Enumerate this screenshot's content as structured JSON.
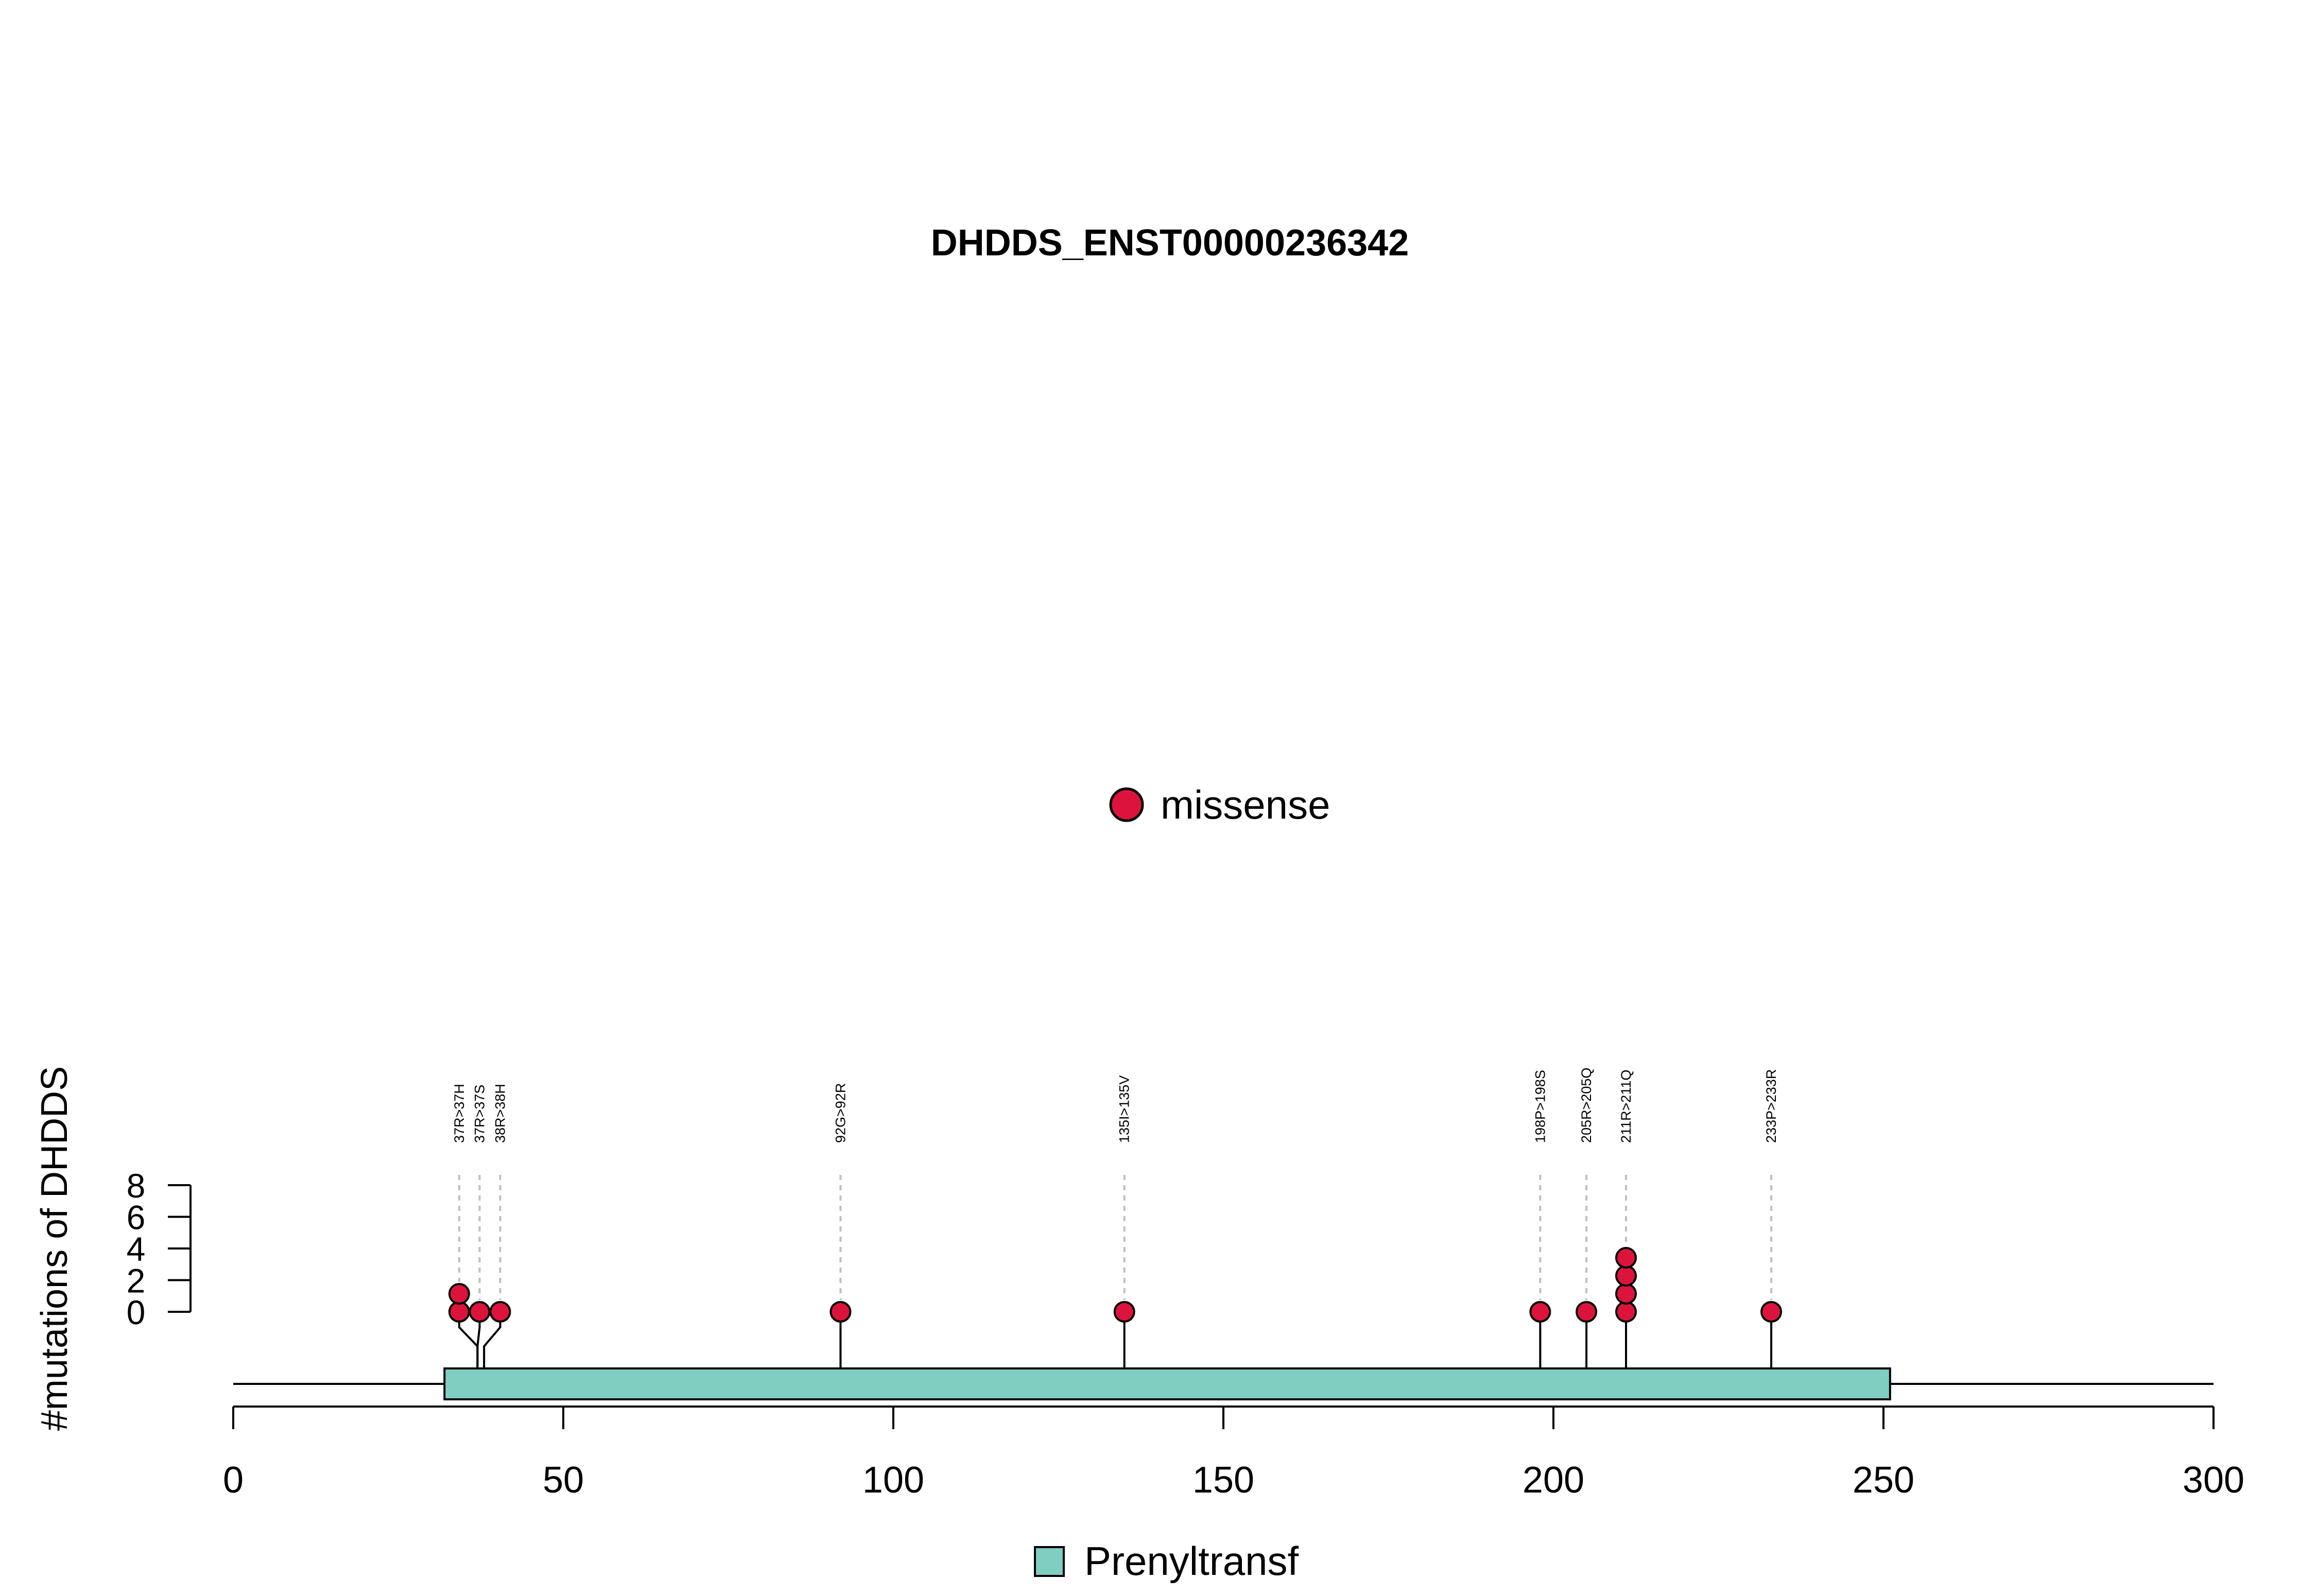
{
  "chart_data": {
    "type": "lollipop",
    "title": "DHDDS_ENST00000236342",
    "ylabel": "#mutations of DHDDS",
    "xlabel": "",
    "xlim": [
      0,
      300
    ],
    "x_ticks": [
      0,
      50,
      100,
      150,
      200,
      250,
      300
    ],
    "ylim": [
      0,
      8
    ],
    "y_ticks": [
      0,
      2,
      4,
      6,
      8
    ],
    "protein_length": 300,
    "domains": [
      {
        "name": "Prenyltransf",
        "start": 32,
        "end": 251,
        "color": "#80CDC1"
      }
    ],
    "mutation_type_legend": [
      {
        "label": "missense",
        "color": "#DC143C"
      }
    ],
    "mutations": [
      {
        "label": "37R>37H",
        "position": 37,
        "count": 2,
        "type": "missense"
      },
      {
        "label": "37R>37S",
        "position": 37,
        "count": 1,
        "type": "missense"
      },
      {
        "label": "38R>38H",
        "position": 38,
        "count": 1,
        "type": "missense"
      },
      {
        "label": "92G>92R",
        "position": 92,
        "count": 1,
        "type": "missense"
      },
      {
        "label": "135I>135V",
        "position": 135,
        "count": 1,
        "type": "missense"
      },
      {
        "label": "198P>198S",
        "position": 198,
        "count": 1,
        "type": "missense"
      },
      {
        "label": "205R>205Q",
        "position": 205,
        "count": 1,
        "type": "missense"
      },
      {
        "label": "211R>211Q",
        "position": 211,
        "count": 4,
        "type": "missense"
      },
      {
        "label": "233P>233R",
        "position": 233,
        "count": 1,
        "type": "missense"
      }
    ]
  }
}
